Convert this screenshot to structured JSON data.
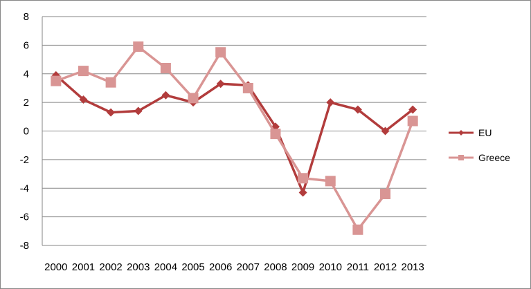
{
  "chart_data": {
    "type": "line",
    "title": "",
    "xlabel": "",
    "ylabel": "",
    "categories": [
      "2000",
      "2001",
      "2002",
      "2003",
      "2004",
      "2005",
      "2006",
      "2007",
      "2008",
      "2009",
      "2010",
      "2011",
      "2012",
      "2013"
    ],
    "ylim": [
      -8,
      8
    ],
    "yticks": [
      8,
      6,
      4,
      2,
      0,
      -2,
      -4,
      -6,
      -8
    ],
    "grid": "horizontal",
    "legend_position": "right",
    "series": [
      {
        "name": "EU",
        "color": "#B23C3C",
        "marker": "diamond",
        "values": [
          3.9,
          2.2,
          1.3,
          1.4,
          2.5,
          2.0,
          3.3,
          3.2,
          0.3,
          -4.3,
          2.0,
          1.5,
          0.0,
          1.5
        ]
      },
      {
        "name": "Greece",
        "color": "#D99594",
        "marker": "square",
        "values": [
          3.5,
          4.2,
          3.4,
          5.9,
          4.4,
          2.3,
          5.5,
          3.0,
          -0.2,
          -3.3,
          -3.5,
          -6.9,
          -4.4,
          0.7
        ]
      }
    ]
  }
}
